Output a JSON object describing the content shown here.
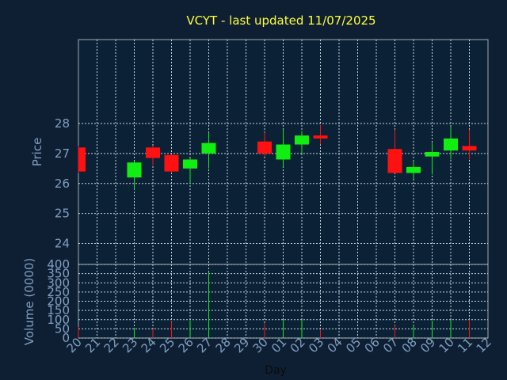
{
  "chart_data": [
    {
      "type": "candlestick",
      "title": "VCYT - last updated 11/07/2025",
      "ylabel": "Price",
      "ylim": [
        23.3,
        30.8
      ],
      "yticks": [
        24,
        25,
        26,
        27,
        28
      ],
      "grid": true,
      "colors": {
        "up": "#11ee11",
        "down": "#ff1111",
        "background": "#0f1f33",
        "panel": "#0b2236",
        "grid": "#c8d3de",
        "title": "#ffff33",
        "axis_text": "#7f9fc3"
      },
      "x_ticks": [
        "20",
        "21",
        "22",
        "23",
        "24",
        "25",
        "26",
        "27",
        "28",
        "29",
        "30",
        "01",
        "02",
        "03",
        "04",
        "05",
        "06",
        "07",
        "08",
        "09",
        "10",
        "11",
        "12"
      ],
      "candles": [
        {
          "day": "20",
          "open": 27.2,
          "close": 26.4,
          "high": 27.25,
          "low": 26.35
        },
        {
          "day": "23",
          "open": 26.2,
          "close": 26.7,
          "high": 26.75,
          "low": 25.8
        },
        {
          "day": "24",
          "open": 27.2,
          "close": 26.85,
          "high": 27.25,
          "low": 26.6
        },
        {
          "day": "25",
          "open": 26.95,
          "close": 26.4,
          "high": 26.97,
          "low": 26.35
        },
        {
          "day": "26",
          "open": 26.5,
          "close": 26.8,
          "high": 26.85,
          "low": 26.0
        },
        {
          "day": "27",
          "open": 27.0,
          "close": 27.35,
          "high": 27.7,
          "low": 26.5
        },
        {
          "day": "30",
          "open": 27.4,
          "close": 27.0,
          "high": 27.7,
          "low": 26.9
        },
        {
          "day": "01",
          "open": 26.8,
          "close": 27.3,
          "high": 27.8,
          "low": 26.55
        },
        {
          "day": "02",
          "open": 27.3,
          "close": 27.6,
          "high": 27.75,
          "low": 27.0
        },
        {
          "day": "03",
          "open": 27.6,
          "close": 27.5,
          "high": 27.95,
          "low": 27.3
        },
        {
          "day": "07",
          "open": 27.15,
          "close": 26.35,
          "high": 27.8,
          "low": 26.35
        },
        {
          "day": "08",
          "open": 26.35,
          "close": 26.55,
          "high": 26.75,
          "low": 26.15
        },
        {
          "day": "09",
          "open": 26.9,
          "close": 27.05,
          "high": 27.35,
          "low": 26.3
        },
        {
          "day": "10",
          "open": 27.1,
          "close": 27.5,
          "high": 27.9,
          "low": 26.8
        },
        {
          "day": "11",
          "open": 27.25,
          "close": 27.1,
          "high": 27.8,
          "low": 26.8
        }
      ]
    },
    {
      "type": "bar",
      "ylabel": "Volume (0000)",
      "xlabel": "Day",
      "ylim": [
        0,
        400
      ],
      "yticks": [
        0,
        50,
        100,
        150,
        200,
        250,
        300,
        350,
        400
      ],
      "grid": true,
      "categories": [
        "20",
        "23",
        "24",
        "25",
        "26",
        "27",
        "30",
        "01",
        "02",
        "03",
        "07",
        "08",
        "09",
        "10",
        "11"
      ],
      "values": [
        60,
        55,
        50,
        88,
        95,
        360,
        80,
        100,
        100,
        45,
        70,
        70,
        95,
        100,
        100
      ],
      "directions": [
        "down",
        "up",
        "down",
        "down",
        "up",
        "up",
        "down",
        "up",
        "up",
        "down",
        "down",
        "up",
        "up",
        "up",
        "down"
      ]
    }
  ]
}
